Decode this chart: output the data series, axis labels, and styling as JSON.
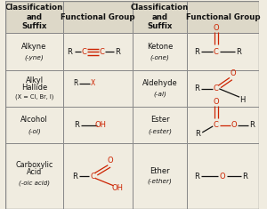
{
  "bg_color": "#f0ece0",
  "header_bg": "#ddd8c8",
  "border_color": "#888888",
  "red": "#cc2200",
  "black": "#111111",
  "col_starts": [
    0.0,
    0.225,
    0.5,
    0.715
  ],
  "col_ends": [
    0.225,
    0.5,
    0.715,
    1.0
  ],
  "row_tops": [
    1.0,
    0.845,
    0.665,
    0.49,
    0.315,
    0.0
  ],
  "headers": [
    "Classification\nand\nSuffix",
    "Functional Group",
    "Classification\nand\nSuffix",
    "Functional Group"
  ],
  "row0_col0": [
    "Alkyne",
    "(-yne)"
  ],
  "row0_col2": [
    "Ketone",
    "(-one)"
  ],
  "row1_col0_lines": [
    "Alkyl",
    "Hallide"
  ],
  "row1_col0_sub": "(X = Cl, Br, I)",
  "row1_col2": [
    "Aldehyde",
    "(-al)"
  ],
  "row2_col0": [
    "Alcohol",
    "(-ol)"
  ],
  "row2_col2": [
    "Ester",
    "(-ester)"
  ],
  "row3_col0_lines": [
    "Carboxylic",
    "Acid"
  ],
  "row3_col0_sub": "(-oic acid)"
}
